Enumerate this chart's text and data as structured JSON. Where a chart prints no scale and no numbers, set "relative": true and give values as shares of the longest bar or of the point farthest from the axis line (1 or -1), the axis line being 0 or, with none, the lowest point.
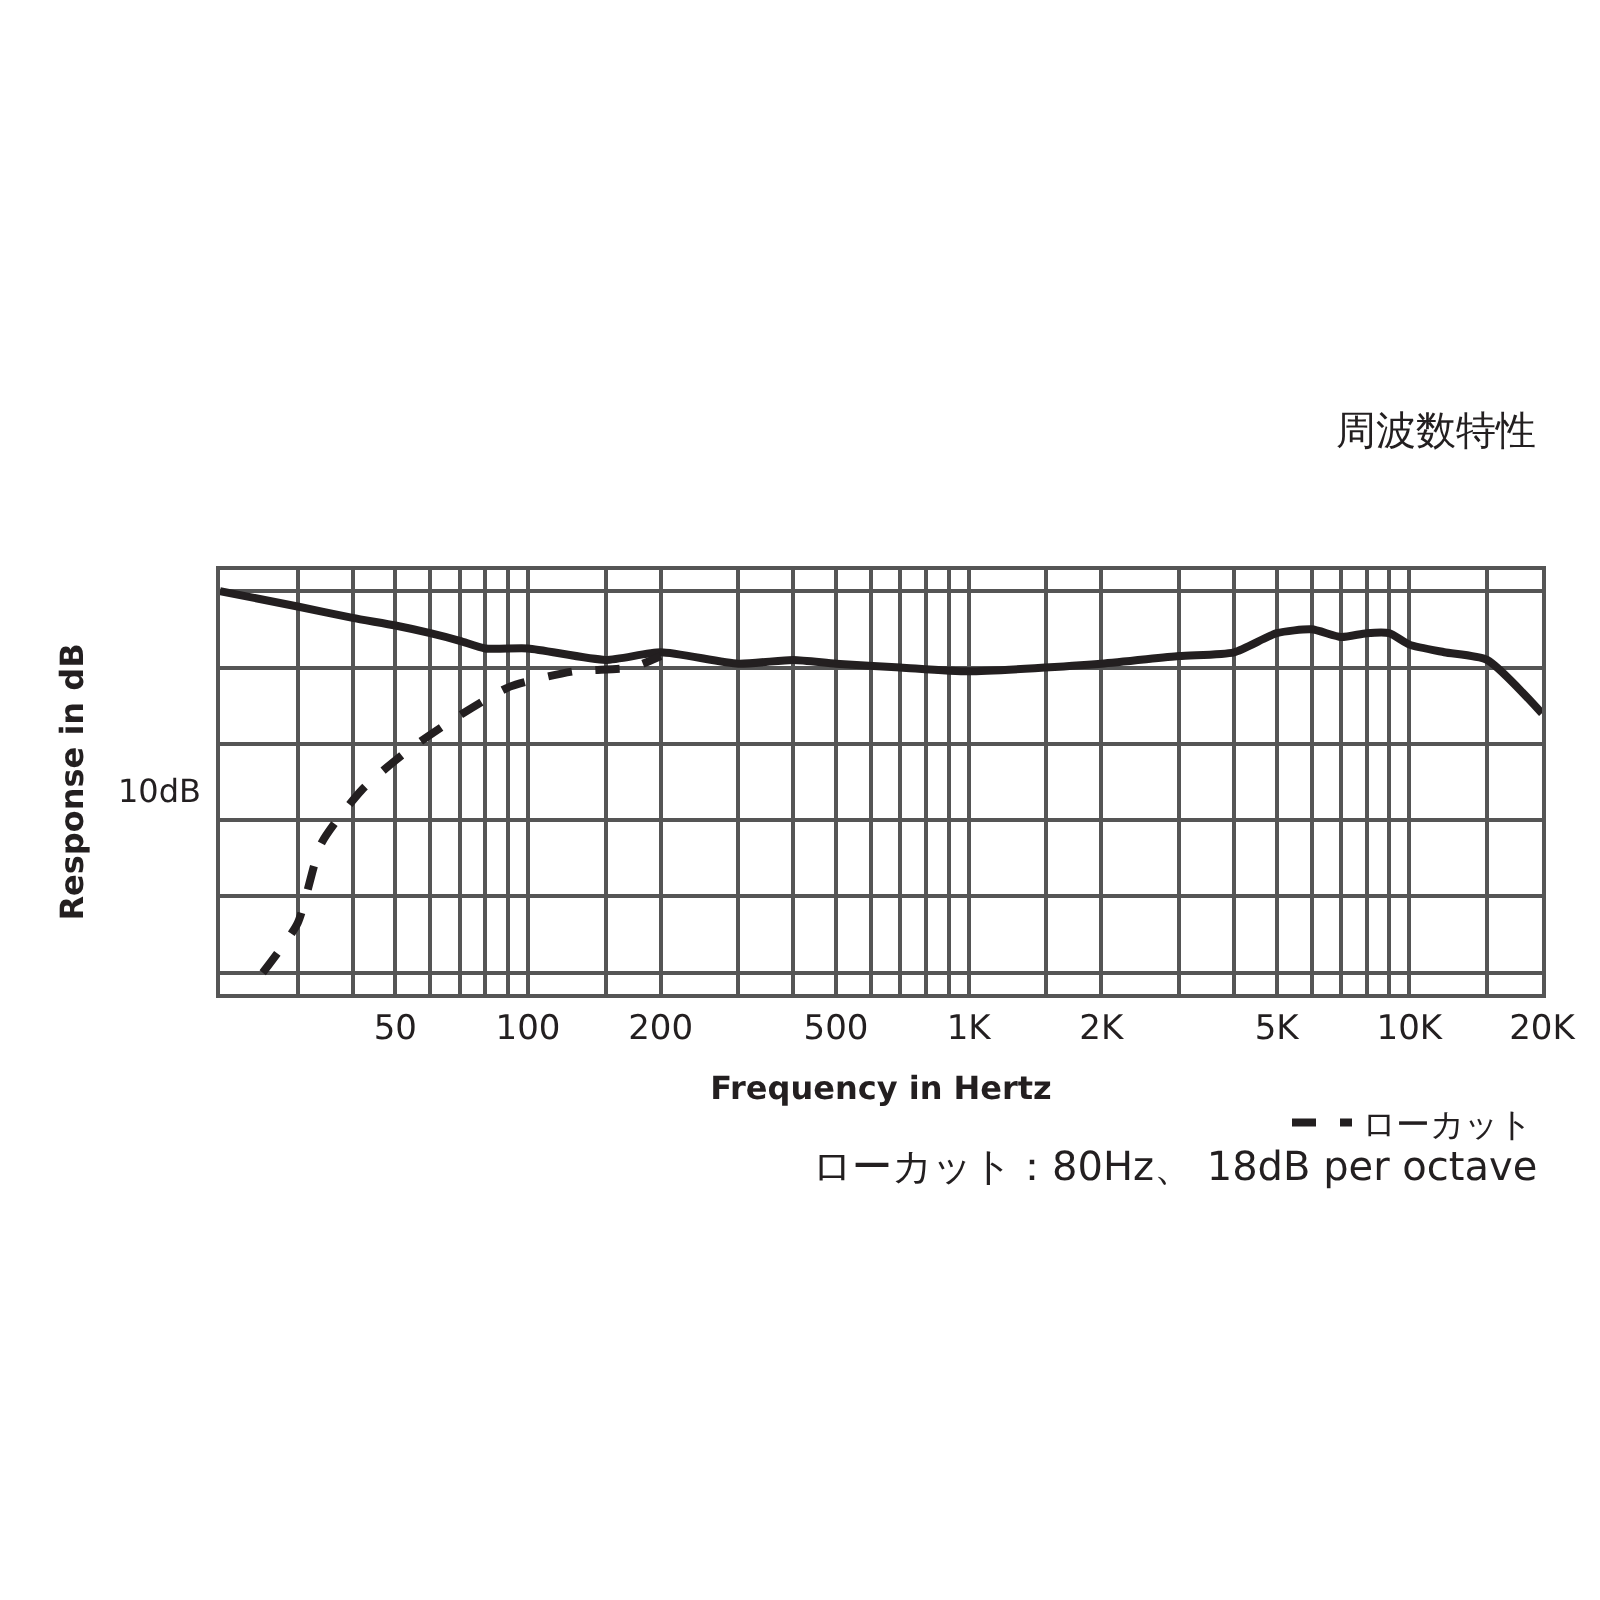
{
  "chart_data": {
    "type": "line",
    "title": "周波数特性",
    "xlabel": "Frequency in Hertz",
    "ylabel": "Response in dB",
    "annotations": [
      "10dB",
      "ローカット：80Hz、 18dB per octave"
    ],
    "relative": true,
    "log": "x",
    "grid": true,
    "legend": "bottom right",
    "xlim": [
      20,
      20000
    ],
    "xticks": [
      {
        "value": 30,
        "label": null
      },
      {
        "value": 40,
        "label": null
      },
      50,
      {
        "value": 60,
        "label": null
      },
      {
        "value": 70,
        "label": null
      },
      {
        "value": 80,
        "label": null
      },
      {
        "value": 90,
        "label": null
      },
      100,
      {
        "value": 150,
        "label": null
      },
      200,
      {
        "value": 300,
        "label": null
      },
      {
        "value": 400,
        "label": null
      },
      500,
      {
        "value": 600,
        "label": null
      },
      {
        "value": 700,
        "label": null
      },
      {
        "value": 800,
        "label": null
      },
      {
        "value": 900,
        "label": null
      },
      {
        "value": 1000,
        "label": "1K"
      },
      {
        "value": 1500,
        "label": null
      },
      {
        "value": 2000,
        "label": "2K"
      },
      {
        "value": 3000,
        "label": null
      },
      {
        "value": 4000,
        "label": null
      },
      {
        "value": 5000,
        "label": "5K"
      },
      {
        "value": 6000,
        "label": null
      },
      {
        "value": 7000,
        "label": null
      },
      {
        "value": 8000,
        "label": null
      },
      {
        "value": 9000,
        "label": null
      },
      {
        "value": 10000,
        "label": "10K"
      },
      {
        "value": 15000,
        "label": null
      },
      {
        "value": 20000,
        "label": "20K"
      }
    ],
    "series": [
      {
        "color": "#231f20",
        "line_style": "solid",
        "x": [
          20,
          30,
          40,
          50,
          60,
          70,
          80,
          100,
          150,
          200,
          300,
          400,
          500,
          700,
          1000,
          2000,
          3000,
          4000,
          5000,
          6000,
          7000,
          8000,
          9000,
          10000,
          12000,
          15000,
          20000
        ],
        "values": [
          1.0,
          0.96,
          0.93,
          0.91,
          0.89,
          0.87,
          0.85,
          0.85,
          0.82,
          0.84,
          0.81,
          0.82,
          0.81,
          0.8,
          0.79,
          0.81,
          0.83,
          0.84,
          0.89,
          0.9,
          0.88,
          0.89,
          0.89,
          0.86,
          0.84,
          0.82,
          0.68
        ]
      },
      {
        "name": "ローカット",
        "color": "#231f20",
        "line_style": "dashed",
        "x": [
          25,
          30,
          34,
          42,
          53,
          69,
          91,
          127,
          172,
          200
        ],
        "values": [
          0,
          0.13,
          0.34,
          0.48,
          0.58,
          0.67,
          0.75,
          0.79,
          0.8,
          0.83
        ]
      }
    ]
  }
}
